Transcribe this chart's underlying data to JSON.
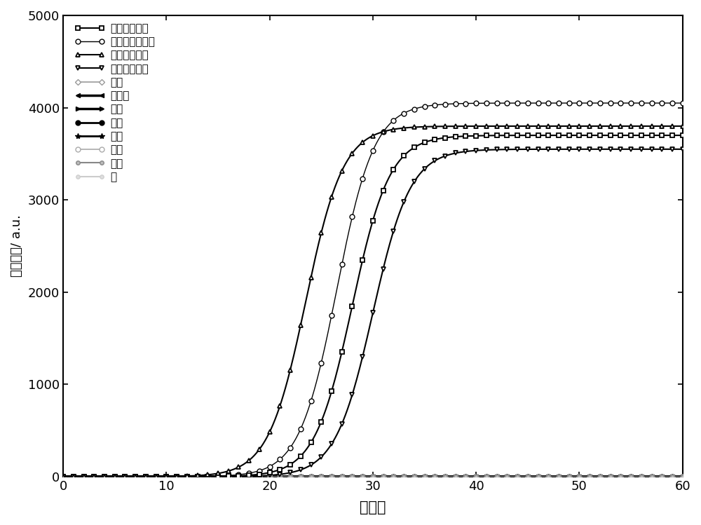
{
  "xlabel": "循环数",
  "ylabel": "荧光强度/ a.u.",
  "xlim": [
    0,
    60
  ],
  "ylim": [
    0,
    5000
  ],
  "xticks": [
    0,
    10,
    20,
    30,
    40,
    50,
    60
  ],
  "yticks": [
    0,
    1000,
    2000,
    3000,
    4000,
    5000
  ],
  "series": [
    {
      "label": "大豆（临沂）",
      "plateau": 3700,
      "midpoint": 28.0,
      "steepness": 0.55,
      "noise_base": 5,
      "color": "black",
      "lw": 1.5,
      "marker": "s",
      "ms": 5,
      "mfc": "white",
      "mew": 1.3,
      "every": 1,
      "zorder": 5
    },
    {
      "label": "大豆（佳木斯）",
      "plateau": 4050,
      "midpoint": 26.5,
      "steepness": 0.55,
      "noise_base": 5,
      "color": "black",
      "lw": 1.0,
      "marker": "o",
      "ms": 5,
      "mfc": "white",
      "mew": 1.0,
      "every": 1,
      "zorder": 4
    },
    {
      "label": "大豆（南京）",
      "plateau": 3800,
      "midpoint": 23.5,
      "steepness": 0.55,
      "noise_base": 5,
      "color": "black",
      "lw": 1.5,
      "marker": "^",
      "ms": 5,
      "mfc": "white",
      "mew": 1.3,
      "every": 1,
      "zorder": 6
    },
    {
      "label": "大豆（杭州）",
      "plateau": 3550,
      "midpoint": 30.0,
      "steepness": 0.55,
      "noise_base": 5,
      "color": "black",
      "lw": 1.5,
      "marker": "v",
      "ms": 5,
      "mfc": "white",
      "mew": 1.3,
      "every": 1,
      "zorder": 4
    },
    {
      "label": "花生",
      "plateau": 100,
      "midpoint": 80,
      "steepness": 0.3,
      "noise_base": 5,
      "color": "#999999",
      "lw": 1.2,
      "marker": "D",
      "ms": 4,
      "mfc": "white",
      "mew": 1.0,
      "every": 1,
      "zorder": 3
    },
    {
      "label": "开心果",
      "plateau": 70,
      "midpoint": 80,
      "steepness": 0.3,
      "noise_base": 5,
      "color": "black",
      "lw": 2.5,
      "marker": "<",
      "ms": 5,
      "mfc": "black",
      "mew": 1.0,
      "every": 1,
      "zorder": 3
    },
    {
      "label": "杏仁",
      "plateau": 70,
      "midpoint": 80,
      "steepness": 0.3,
      "noise_base": 5,
      "color": "black",
      "lw": 2.5,
      "marker": ">",
      "ms": 5,
      "mfc": "black",
      "mew": 1.0,
      "every": 1,
      "zorder": 3
    },
    {
      "label": "榦子",
      "plateau": 80,
      "midpoint": 80,
      "steepness": 0.3,
      "noise_base": 5,
      "color": "black",
      "lw": 2.0,
      "marker": "o",
      "ms": 5,
      "mfc": "black",
      "mew": 1.0,
      "every": 1,
      "zorder": 3
    },
    {
      "label": "芝麻",
      "plateau": 60,
      "midpoint": 80,
      "steepness": 0.3,
      "noise_base": 4,
      "color": "black",
      "lw": 2.0,
      "marker": "*",
      "ms": 6,
      "mfc": "black",
      "mew": 1.0,
      "every": 1,
      "zorder": 3
    },
    {
      "label": "核桃",
      "plateau": 90,
      "midpoint": 80,
      "steepness": 0.3,
      "noise_base": 5,
      "color": "#aaaaaa",
      "lw": 1.2,
      "marker": "o",
      "ms": 5,
      "mfc": "white",
      "mew": 1.0,
      "every": 1,
      "zorder": 3
    },
    {
      "label": "芚末",
      "plateau": 150,
      "midpoint": 80,
      "steepness": 0.3,
      "noise_base": 5,
      "color": "#888888",
      "lw": 1.5,
      "marker": "o",
      "ms": 4,
      "mfc": "#bbbbbb",
      "mew": 1.0,
      "every": 1,
      "zorder": 3
    },
    {
      "label": "水",
      "plateau": 50,
      "midpoint": 80,
      "steepness": 0.3,
      "noise_base": 3,
      "color": "#cccccc",
      "lw": 1.5,
      "marker": "o",
      "ms": 4,
      "mfc": "#dddddd",
      "mew": 0.8,
      "every": 1,
      "zorder": 2
    }
  ]
}
